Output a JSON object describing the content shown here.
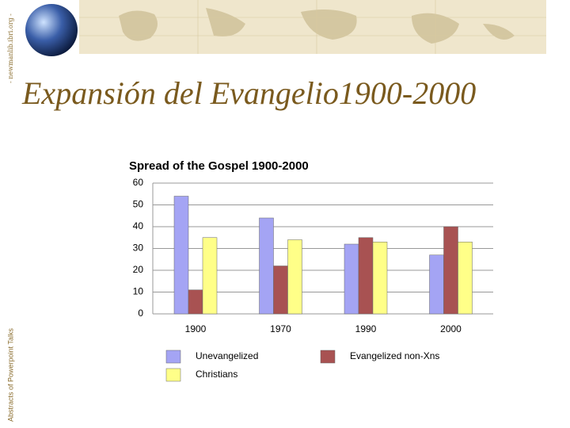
{
  "slide": {
    "side_note": "Abstracts of Powerpoint Talks",
    "top_note": "- newmanlib.ibri.org -",
    "title": "Expansión del Evangelio1900-2000"
  },
  "chart_data": {
    "type": "bar",
    "title": "Spread of the Gospel 1900-2000",
    "categories": [
      "1900",
      "1970",
      "1990",
      "2000"
    ],
    "series": [
      {
        "name": "Unevangelized",
        "color": "#a4a4f4",
        "values": [
          54,
          44,
          32,
          27
        ]
      },
      {
        "name": "Evangelized non-Xns",
        "color": "#a85252",
        "values": [
          11,
          22,
          35,
          40
        ]
      },
      {
        "name": "Christians",
        "color": "#ffff88",
        "values": [
          35,
          34,
          33,
          33
        ]
      }
    ],
    "ylim": [
      0,
      60
    ],
    "yticks": [
      0,
      10,
      20,
      30,
      40,
      50,
      60
    ],
    "grid": true
  }
}
